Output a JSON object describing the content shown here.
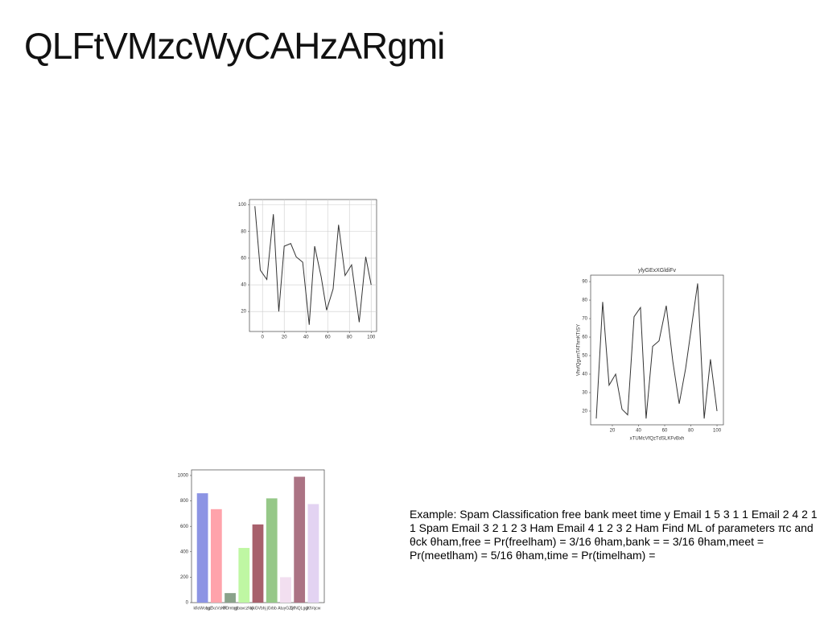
{
  "title": "QLFtVMzcWyCAHzARgmi",
  "text": "Example: Spam Classification free bank meet time y Email 1 5 3 1 1 Email 2 4 2 1 1 Spam Email 3 2 1 2 3 Ham Email 4 1 2 3 2 Ham Find ML of parameters πc and θck θham,free = Pr(freelham) = 3/16 θham,bank = = 3/16 θham,meet = Pr(meetlham) = 5/16 θham,time = Pr(timelham) =",
  "chart_data": [
    {
      "type": "line",
      "color": "#333333",
      "grid": true,
      "x": [
        -7,
        -2,
        4,
        10,
        15,
        20,
        26,
        31,
        37,
        43,
        48,
        54,
        59,
        65,
        70,
        76,
        82,
        89,
        95,
        100
      ],
      "values": [
        99,
        51,
        44,
        93,
        20,
        69,
        71,
        61,
        57,
        10,
        69,
        46,
        21,
        37,
        85,
        47,
        55,
        12,
        61,
        40
      ],
      "xlim": [
        -12,
        105
      ],
      "xticks": [
        0,
        20,
        40,
        60,
        80,
        100
      ],
      "ylim": [
        5,
        104
      ],
      "yticks": [
        20,
        40,
        60,
        80,
        100
      ]
    },
    {
      "type": "line",
      "color": "#333333",
      "grid": false,
      "title": "ylyGExXGldiFv",
      "xlabel": "xTUMcVfQzTdSLKFvBxh",
      "ylabel": "VhvfQgumTAThmKTtSY",
      "x": [
        7.7,
        12.6,
        17.5,
        22.5,
        27.4,
        31.7,
        36.6,
        41.5,
        45.8,
        50.8,
        55.7,
        61.2,
        66.2,
        71.1,
        76,
        85.2,
        90.2,
        95,
        100
      ],
      "values": [
        16,
        79,
        34,
        40,
        21,
        18,
        71,
        76,
        16,
        55,
        58,
        77,
        47,
        24,
        43,
        89,
        16,
        48,
        20
      ],
      "xlim": [
        3.4,
        104.9
      ],
      "xticks": [
        20,
        40,
        60,
        80,
        100
      ],
      "ylim": [
        12.6,
        93.5
      ],
      "yticks": [
        20,
        30,
        40,
        50,
        60,
        70,
        80,
        90
      ]
    },
    {
      "type": "bar",
      "categories": [
        "kfioWoqgt",
        "hgZkcVsKR",
        "ROmtog",
        "gIbavczNcl",
        "ajkGVbhj",
        "jGrbb",
        "AtuyGZx",
        "QfNQLgqt",
        "jXtVqcw"
      ],
      "values": [
        860,
        735,
        75,
        430,
        615,
        820,
        200,
        990,
        775
      ],
      "colors": [
        "#8c94e4",
        "#ffa3ab",
        "#8aa28a",
        "#bff7a3",
        "#a8606c",
        "#96c888",
        "#f2dff0",
        "#ab7384",
        "#e3d3f2"
      ],
      "ylim": [
        0,
        1044
      ],
      "yticks": [
        0,
        200,
        400,
        600,
        800,
        1000
      ]
    }
  ]
}
